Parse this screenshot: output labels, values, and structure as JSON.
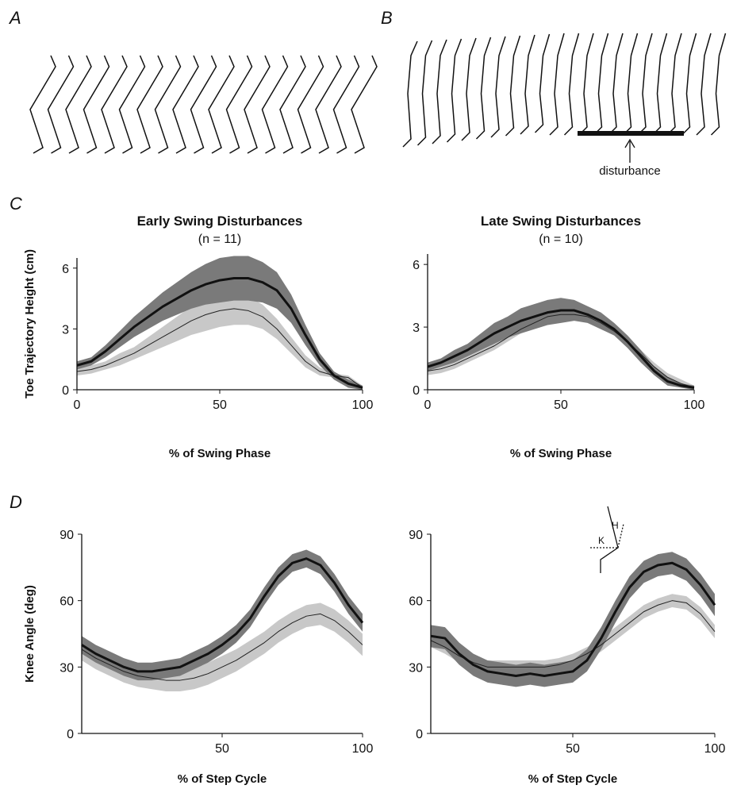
{
  "panel_labels": [
    "A",
    "B",
    "C",
    "D"
  ],
  "disturbance_label": "disturbance",
  "inset_labels": [
    "H",
    "K"
  ],
  "chart_data": [
    {
      "type": "line",
      "title": "Early Swing Disturbances",
      "subtitle": "(n = 11)",
      "xlabel": "% of Swing Phase",
      "ylabel": "Toe Trajectory Height (cm)",
      "x": [
        0,
        5,
        10,
        15,
        20,
        25,
        30,
        35,
        40,
        45,
        50,
        55,
        60,
        65,
        70,
        75,
        80,
        85,
        90,
        95,
        100
      ],
      "xlim": [
        0,
        100
      ],
      "ylim": [
        0,
        6.5
      ],
      "xticks": [
        0,
        50,
        100
      ],
      "yticks": [
        0,
        3,
        6
      ],
      "series": [
        {
          "color": "#222222",
          "linewidth": 1,
          "band_color": "#c8c8c8",
          "values": [
            0.9,
            1.0,
            1.2,
            1.5,
            1.8,
            2.2,
            2.6,
            3.0,
            3.4,
            3.7,
            3.9,
            4.0,
            3.9,
            3.6,
            3.0,
            2.2,
            1.4,
            0.9,
            0.7,
            0.6,
            0.1
          ],
          "band_lower": [
            0.7,
            0.8,
            1.0,
            1.2,
            1.5,
            1.8,
            2.1,
            2.4,
            2.7,
            2.9,
            3.1,
            3.2,
            3.2,
            3.0,
            2.5,
            1.8,
            1.1,
            0.7,
            0.6,
            0.5,
            0.0
          ],
          "band_upper": [
            1.1,
            1.2,
            1.4,
            1.8,
            2.1,
            2.6,
            3.1,
            3.6,
            4.1,
            4.5,
            4.7,
            4.8,
            4.6,
            4.2,
            3.5,
            2.6,
            1.7,
            1.1,
            0.8,
            0.7,
            0.2
          ]
        },
        {
          "color": "#111111",
          "linewidth": 3,
          "band_color": "#7a7a7a",
          "values": [
            1.2,
            1.4,
            1.9,
            2.5,
            3.1,
            3.6,
            4.1,
            4.5,
            4.9,
            5.2,
            5.4,
            5.5,
            5.5,
            5.3,
            4.9,
            4.0,
            2.7,
            1.5,
            0.7,
            0.3,
            0.1
          ],
          "band_lower": [
            1.0,
            1.2,
            1.6,
            2.1,
            2.6,
            3.0,
            3.4,
            3.7,
            4.0,
            4.2,
            4.3,
            4.4,
            4.4,
            4.3,
            4.0,
            3.3,
            2.2,
            1.2,
            0.5,
            0.1,
            0.0
          ],
          "band_upper": [
            1.4,
            1.6,
            2.2,
            2.9,
            3.6,
            4.2,
            4.8,
            5.3,
            5.8,
            6.2,
            6.5,
            6.6,
            6.6,
            6.3,
            5.8,
            4.7,
            3.2,
            1.8,
            0.9,
            0.5,
            0.2
          ]
        }
      ]
    },
    {
      "type": "line",
      "title": "Late Swing Disturbances",
      "subtitle": "(n = 10)",
      "xlabel": "% of Swing Phase",
      "x": [
        0,
        5,
        10,
        15,
        20,
        25,
        30,
        35,
        40,
        45,
        50,
        55,
        60,
        65,
        70,
        75,
        80,
        85,
        90,
        95,
        100
      ],
      "xlim": [
        0,
        100
      ],
      "ylim": [
        0,
        6.5
      ],
      "xticks": [
        0,
        50,
        100
      ],
      "yticks": [
        0,
        3,
        6
      ],
      "series": [
        {
          "color": "#222222",
          "linewidth": 1,
          "band_color": "#c8c8c8",
          "values": [
            0.9,
            1.0,
            1.2,
            1.5,
            1.8,
            2.1,
            2.5,
            2.9,
            3.2,
            3.5,
            3.6,
            3.6,
            3.5,
            3.2,
            2.8,
            2.3,
            1.7,
            1.1,
            0.6,
            0.3,
            0.1
          ],
          "band_lower": [
            0.7,
            0.8,
            1.0,
            1.3,
            1.6,
            1.9,
            2.3,
            2.7,
            3.0,
            3.3,
            3.4,
            3.4,
            3.3,
            3.0,
            2.6,
            2.1,
            1.5,
            0.9,
            0.4,
            0.1,
            0.0
          ],
          "band_upper": [
            1.1,
            1.2,
            1.4,
            1.7,
            2.0,
            2.3,
            2.7,
            3.1,
            3.4,
            3.7,
            3.8,
            3.8,
            3.7,
            3.4,
            3.0,
            2.5,
            1.9,
            1.3,
            0.8,
            0.5,
            0.2
          ]
        },
        {
          "color": "#111111",
          "linewidth": 3,
          "band_color": "#7a7a7a",
          "values": [
            1.1,
            1.3,
            1.6,
            1.9,
            2.3,
            2.7,
            3.0,
            3.3,
            3.5,
            3.7,
            3.8,
            3.8,
            3.6,
            3.3,
            2.9,
            2.3,
            1.6,
            0.9,
            0.4,
            0.2,
            0.1
          ],
          "band_lower": [
            0.9,
            1.1,
            1.3,
            1.6,
            1.9,
            2.2,
            2.5,
            2.7,
            2.9,
            3.1,
            3.2,
            3.3,
            3.2,
            2.9,
            2.6,
            2.0,
            1.3,
            0.7,
            0.2,
            0.1,
            0.0
          ],
          "band_upper": [
            1.3,
            1.5,
            1.9,
            2.2,
            2.7,
            3.2,
            3.5,
            3.9,
            4.1,
            4.3,
            4.4,
            4.3,
            4.0,
            3.7,
            3.2,
            2.6,
            1.9,
            1.1,
            0.6,
            0.3,
            0.2
          ]
        }
      ]
    },
    {
      "type": "line",
      "xlabel": "% of Step Cycle",
      "ylabel": "Knee Angle (deg)",
      "x": [
        0,
        5,
        10,
        15,
        20,
        25,
        30,
        35,
        40,
        45,
        50,
        55,
        60,
        65,
        70,
        75,
        80,
        85,
        90,
        95,
        100
      ],
      "xlim": [
        0,
        100
      ],
      "ylim": [
        0,
        90
      ],
      "xticks": [
        50,
        100
      ],
      "yticks": [
        0,
        30,
        60,
        90
      ],
      "series": [
        {
          "color": "#222222",
          "linewidth": 1,
          "band_color": "#c8c8c8",
          "values": [
            38,
            34,
            31,
            28,
            26,
            25,
            24,
            24,
            25,
            27,
            30,
            33,
            37,
            41,
            46,
            50,
            53,
            54,
            51,
            46,
            40
          ],
          "band_lower": [
            33,
            29,
            26,
            23,
            21,
            20,
            19,
            19,
            20,
            22,
            25,
            28,
            32,
            36,
            41,
            45,
            48,
            49,
            46,
            41,
            35
          ],
          "band_upper": [
            43,
            39,
            36,
            33,
            31,
            30,
            29,
            29,
            30,
            32,
            35,
            38,
            42,
            46,
            51,
            55,
            58,
            59,
            56,
            51,
            45
          ]
        },
        {
          "color": "#111111",
          "linewidth": 3,
          "band_color": "#7a7a7a",
          "values": [
            40,
            36,
            33,
            30,
            28,
            28,
            29,
            30,
            33,
            36,
            40,
            45,
            52,
            62,
            71,
            77,
            79,
            76,
            68,
            58,
            50
          ],
          "band_lower": [
            36,
            32,
            29,
            26,
            24,
            24,
            25,
            26,
            29,
            32,
            36,
            41,
            48,
            58,
            67,
            73,
            75,
            72,
            64,
            54,
            46
          ],
          "band_upper": [
            44,
            40,
            37,
            34,
            32,
            32,
            33,
            34,
            37,
            40,
            44,
            49,
            56,
            66,
            75,
            81,
            83,
            80,
            72,
            62,
            54
          ]
        }
      ]
    },
    {
      "type": "line",
      "xlabel": "% of Step Cycle",
      "x": [
        0,
        5,
        10,
        15,
        20,
        25,
        30,
        35,
        40,
        45,
        50,
        55,
        60,
        65,
        70,
        75,
        80,
        85,
        90,
        95,
        100
      ],
      "xlim": [
        0,
        100
      ],
      "ylim": [
        0,
        90
      ],
      "xticks": [
        50,
        100
      ],
      "yticks": [
        0,
        30,
        60,
        90
      ],
      "series": [
        {
          "color": "#222222",
          "linewidth": 1,
          "band_color": "#c8c8c8",
          "values": [
            42,
            39,
            35,
            32,
            30,
            30,
            30,
            30,
            30,
            31,
            33,
            36,
            40,
            45,
            50,
            55,
            58,
            60,
            59,
            54,
            46
          ],
          "band_lower": [
            39,
            36,
            32,
            29,
            27,
            27,
            27,
            27,
            27,
            28,
            30,
            33,
            37,
            42,
            47,
            52,
            55,
            57,
            56,
            51,
            43
          ],
          "band_upper": [
            45,
            42,
            38,
            35,
            33,
            33,
            33,
            33,
            33,
            34,
            36,
            39,
            43,
            48,
            53,
            58,
            61,
            63,
            62,
            57,
            49
          ]
        },
        {
          "color": "#111111",
          "linewidth": 3,
          "band_color": "#7a7a7a",
          "values": [
            44,
            43,
            36,
            31,
            28,
            27,
            26,
            27,
            26,
            27,
            28,
            33,
            43,
            55,
            66,
            73,
            76,
            77,
            74,
            67,
            58
          ],
          "band_lower": [
            39,
            38,
            31,
            26,
            23,
            22,
            21,
            22,
            21,
            22,
            23,
            28,
            38,
            50,
            61,
            68,
            71,
            72,
            69,
            62,
            53
          ],
          "band_upper": [
            49,
            48,
            41,
            36,
            33,
            32,
            31,
            32,
            31,
            32,
            33,
            38,
            48,
            60,
            71,
            78,
            81,
            82,
            79,
            72,
            63
          ]
        }
      ]
    }
  ]
}
